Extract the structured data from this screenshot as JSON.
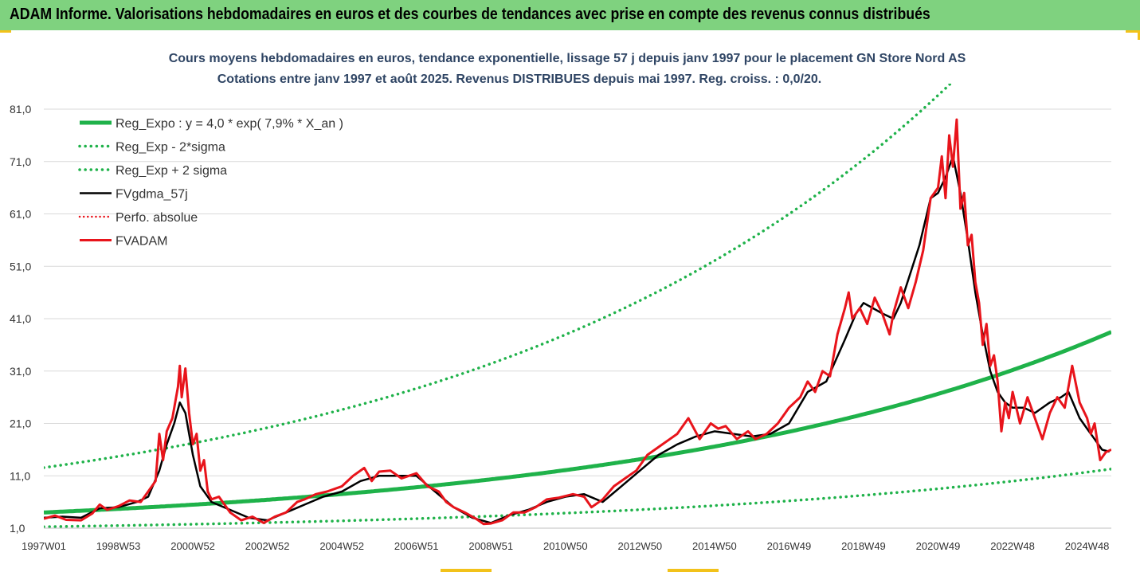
{
  "header": {
    "title": "ADAM Informe. Valorisations hebdomadaires en euros et des courbes de tendances avec prise en compte des revenus connus distribués"
  },
  "chart_data": {
    "type": "line",
    "title": "Cours moyens hebdomadaires en euros, tendance exponentielle, lissage 57 j depuis janv 1997 pour le placement GN Store Nord AS",
    "subtitle": "Cotations entre janv 1997 et août 2025. Revenus DISTRIBUES depuis mai 1997. Reg. croiss. : 0,0/20.",
    "xlabel": "",
    "ylabel": "",
    "x_range": [
      1997.0,
      2025.65
    ],
    "ylim": [
      1,
      87
    ],
    "yticks": [
      1,
      11,
      21,
      31,
      41,
      51,
      61,
      71,
      81
    ],
    "ytick_labels": [
      "1,0",
      "11,0",
      "21,0",
      "31,0",
      "41,0",
      "51,0",
      "61,0",
      "71,0",
      "81,0"
    ],
    "xtick_labels": [
      "1997W01",
      "1998W53",
      "2000W52",
      "2002W52",
      "2004W52",
      "2006W51",
      "2008W51",
      "2010W50",
      "2012W50",
      "2014W50",
      "2016W49",
      "2018W49",
      "2020W49",
      "2022W48",
      "2024W48"
    ],
    "xtick_years": [
      1997.0,
      1999.0,
      2001.0,
      2003.0,
      2005.0,
      2007.0,
      2009.0,
      2011.0,
      2013.0,
      2015.0,
      2017.0,
      2019.0,
      2021.0,
      2023.0,
      2025.0
    ],
    "legend_position": "top-left",
    "grid": "horizontal",
    "colors": {
      "green": "#1fb24a",
      "black": "#000000",
      "red": "#e8141b"
    },
    "series": [
      {
        "name": "Reg_Expo : y = 4,0 * exp( 7,9% *  X_an )",
        "style": "solid-green",
        "formula": {
          "a": 4.0,
          "rate": 0.079,
          "factor": 1.0
        }
      },
      {
        "name": "Reg_Exp - 2*sigma",
        "style": "dotted-green",
        "formula": {
          "a": 4.0,
          "rate": 0.079,
          "factor": 0.32
        }
      },
      {
        "name": "Reg_Exp + 2 sigma",
        "style": "dotted-green",
        "formula": {
          "a": 4.0,
          "rate": 0.079,
          "factor": 3.14
        }
      },
      {
        "name": "FVgdma_57j",
        "style": "solid-black",
        "points": [
          [
            1997.0,
            3.0
          ],
          [
            1997.5,
            3.2
          ],
          [
            1998.0,
            3.0
          ],
          [
            1998.5,
            4.8
          ],
          [
            1999.0,
            5.0
          ],
          [
            1999.5,
            6.0
          ],
          [
            1999.8,
            7.0
          ],
          [
            2000.1,
            12.0
          ],
          [
            2000.3,
            17.0
          ],
          [
            2000.5,
            21.0
          ],
          [
            2000.65,
            25.0
          ],
          [
            2000.8,
            23.0
          ],
          [
            2001.0,
            15.0
          ],
          [
            2001.2,
            9.0
          ],
          [
            2001.5,
            6.0
          ],
          [
            2002.0,
            4.5
          ],
          [
            2002.5,
            3.0
          ],
          [
            2003.0,
            2.5
          ],
          [
            2003.5,
            4.0
          ],
          [
            2004.0,
            5.5
          ],
          [
            2004.5,
            7.0
          ],
          [
            2005.0,
            8.0
          ],
          [
            2005.5,
            10.0
          ],
          [
            2006.0,
            11.0
          ],
          [
            2006.5,
            11.0
          ],
          [
            2007.0,
            11.0
          ],
          [
            2007.5,
            8.0
          ],
          [
            2008.0,
            5.0
          ],
          [
            2008.5,
            3.0
          ],
          [
            2009.0,
            2.0
          ],
          [
            2009.5,
            3.5
          ],
          [
            2010.0,
            4.5
          ],
          [
            2010.5,
            6.0
          ],
          [
            2011.0,
            7.0
          ],
          [
            2011.5,
            7.5
          ],
          [
            2012.0,
            6.0
          ],
          [
            2012.5,
            9.0
          ],
          [
            2013.0,
            12.0
          ],
          [
            2013.5,
            15.0
          ],
          [
            2014.0,
            17.0
          ],
          [
            2014.5,
            18.5
          ],
          [
            2015.0,
            19.5
          ],
          [
            2015.5,
            19.0
          ],
          [
            2016.0,
            18.5
          ],
          [
            2016.5,
            19.0
          ],
          [
            2017.0,
            21.0
          ],
          [
            2017.5,
            27.0
          ],
          [
            2018.0,
            29.0
          ],
          [
            2018.5,
            37.0
          ],
          [
            2018.8,
            42.0
          ],
          [
            2019.0,
            44.0
          ],
          [
            2019.5,
            42.0
          ],
          [
            2019.8,
            41.0
          ],
          [
            2020.0,
            44.0
          ],
          [
            2020.5,
            55.0
          ],
          [
            2020.8,
            64.0
          ],
          [
            2021.0,
            65.0
          ],
          [
            2021.2,
            68.0
          ],
          [
            2021.4,
            72.0
          ],
          [
            2021.6,
            65.0
          ],
          [
            2021.8,
            56.0
          ],
          [
            2022.0,
            46.0
          ],
          [
            2022.2,
            38.0
          ],
          [
            2022.4,
            31.0
          ],
          [
            2022.6,
            27.0
          ],
          [
            2022.8,
            25.0
          ],
          [
            2023.0,
            24.0
          ],
          [
            2023.3,
            24.0
          ],
          [
            2023.6,
            23.0
          ],
          [
            2024.0,
            25.0
          ],
          [
            2024.3,
            26.0
          ],
          [
            2024.5,
            27.0
          ],
          [
            2024.8,
            22.0
          ],
          [
            2025.0,
            20.0
          ],
          [
            2025.2,
            18.0
          ],
          [
            2025.4,
            16.0
          ],
          [
            2025.6,
            15.6
          ]
        ]
      },
      {
        "name": "Perfo. absolue",
        "style": "dotted-red",
        "points": []
      },
      {
        "name": "FVADAM",
        "style": "solid-red",
        "points": [
          [
            1997.0,
            2.8
          ],
          [
            1997.3,
            3.4
          ],
          [
            1997.6,
            2.6
          ],
          [
            1998.0,
            2.5
          ],
          [
            1998.3,
            3.8
          ],
          [
            1998.5,
            5.5
          ],
          [
            1998.7,
            4.5
          ],
          [
            1999.0,
            5.2
          ],
          [
            1999.3,
            6.3
          ],
          [
            1999.6,
            6.0
          ],
          [
            1999.8,
            8.0
          ],
          [
            2000.0,
            10.0
          ],
          [
            2000.1,
            19.0
          ],
          [
            2000.2,
            14.0
          ],
          [
            2000.3,
            19.5
          ],
          [
            2000.45,
            22.0
          ],
          [
            2000.6,
            28.0
          ],
          [
            2000.65,
            32.0
          ],
          [
            2000.7,
            26.0
          ],
          [
            2000.8,
            31.5
          ],
          [
            2000.9,
            23.0
          ],
          [
            2001.0,
            17.0
          ],
          [
            2001.1,
            19.0
          ],
          [
            2001.2,
            12.0
          ],
          [
            2001.3,
            14.0
          ],
          [
            2001.4,
            8.0
          ],
          [
            2001.5,
            6.5
          ],
          [
            2001.7,
            7.0
          ],
          [
            2002.0,
            4.0
          ],
          [
            2002.3,
            2.5
          ],
          [
            2002.6,
            3.2
          ],
          [
            2002.9,
            2.0
          ],
          [
            2003.2,
            3.2
          ],
          [
            2003.5,
            4.0
          ],
          [
            2003.8,
            6.0
          ],
          [
            2004.0,
            6.5
          ],
          [
            2004.3,
            7.5
          ],
          [
            2004.6,
            8.0
          ],
          [
            2005.0,
            9.0
          ],
          [
            2005.3,
            11.0
          ],
          [
            2005.6,
            12.5
          ],
          [
            2005.8,
            10.0
          ],
          [
            2006.0,
            11.8
          ],
          [
            2006.3,
            12.0
          ],
          [
            2006.6,
            10.5
          ],
          [
            2007.0,
            11.5
          ],
          [
            2007.3,
            9.0
          ],
          [
            2007.6,
            8.0
          ],
          [
            2007.8,
            6.0
          ],
          [
            2008.0,
            5.0
          ],
          [
            2008.3,
            4.0
          ],
          [
            2008.6,
            2.8
          ],
          [
            2008.8,
            1.8
          ],
          [
            2009.0,
            1.9
          ],
          [
            2009.3,
            2.5
          ],
          [
            2009.6,
            4.0
          ],
          [
            2009.9,
            4.0
          ],
          [
            2010.2,
            5.0
          ],
          [
            2010.5,
            6.5
          ],
          [
            2010.8,
            6.8
          ],
          [
            2011.2,
            7.5
          ],
          [
            2011.5,
            7.0
          ],
          [
            2011.7,
            5.0
          ],
          [
            2012.0,
            6.5
          ],
          [
            2012.3,
            9.0
          ],
          [
            2012.6,
            10.5
          ],
          [
            2012.9,
            12.0
          ],
          [
            2013.2,
            15.0
          ],
          [
            2013.5,
            16.5
          ],
          [
            2013.8,
            18.0
          ],
          [
            2014.0,
            19.0
          ],
          [
            2014.3,
            22.0
          ],
          [
            2014.6,
            18.0
          ],
          [
            2014.9,
            21.0
          ],
          [
            2015.1,
            20.0
          ],
          [
            2015.3,
            20.5
          ],
          [
            2015.6,
            18.0
          ],
          [
            2015.9,
            19.5
          ],
          [
            2016.1,
            18.0
          ],
          [
            2016.4,
            19.0
          ],
          [
            2016.7,
            21.0
          ],
          [
            2017.0,
            24.0
          ],
          [
            2017.3,
            26.0
          ],
          [
            2017.5,
            29.0
          ],
          [
            2017.7,
            27.0
          ],
          [
            2017.9,
            31.0
          ],
          [
            2018.1,
            30.0
          ],
          [
            2018.3,
            38.0
          ],
          [
            2018.5,
            43.0
          ],
          [
            2018.6,
            46.0
          ],
          [
            2018.7,
            41.0
          ],
          [
            2018.9,
            43.0
          ],
          [
            2019.1,
            40.0
          ],
          [
            2019.3,
            45.0
          ],
          [
            2019.5,
            42.0
          ],
          [
            2019.7,
            38.0
          ],
          [
            2019.8,
            42.0
          ],
          [
            2020.0,
            47.0
          ],
          [
            2020.2,
            43.0
          ],
          [
            2020.4,
            48.0
          ],
          [
            2020.6,
            54.0
          ],
          [
            2020.8,
            64.0
          ],
          [
            2021.0,
            66.0
          ],
          [
            2021.1,
            72.0
          ],
          [
            2021.2,
            64.0
          ],
          [
            2021.3,
            76.0
          ],
          [
            2021.4,
            70.0
          ],
          [
            2021.5,
            79.0
          ],
          [
            2021.6,
            62.0
          ],
          [
            2021.7,
            65.0
          ],
          [
            2021.8,
            55.0
          ],
          [
            2021.9,
            57.0
          ],
          [
            2022.0,
            48.0
          ],
          [
            2022.1,
            44.0
          ],
          [
            2022.2,
            36.0
          ],
          [
            2022.3,
            40.0
          ],
          [
            2022.4,
            32.0
          ],
          [
            2022.5,
            34.0
          ],
          [
            2022.6,
            29.0
          ],
          [
            2022.7,
            19.5
          ],
          [
            2022.8,
            25.0
          ],
          [
            2022.9,
            22.0
          ],
          [
            2023.0,
            27.0
          ],
          [
            2023.2,
            21.0
          ],
          [
            2023.4,
            26.0
          ],
          [
            2023.6,
            22.0
          ],
          [
            2023.8,
            18.0
          ],
          [
            2024.0,
            23.0
          ],
          [
            2024.2,
            26.0
          ],
          [
            2024.4,
            24.0
          ],
          [
            2024.6,
            32.0
          ],
          [
            2024.8,
            25.0
          ],
          [
            2025.0,
            22.0
          ],
          [
            2025.1,
            19.0
          ],
          [
            2025.2,
            21.0
          ],
          [
            2025.35,
            14.0
          ],
          [
            2025.5,
            15.5
          ],
          [
            2025.65,
            16.0
          ]
        ]
      }
    ]
  }
}
